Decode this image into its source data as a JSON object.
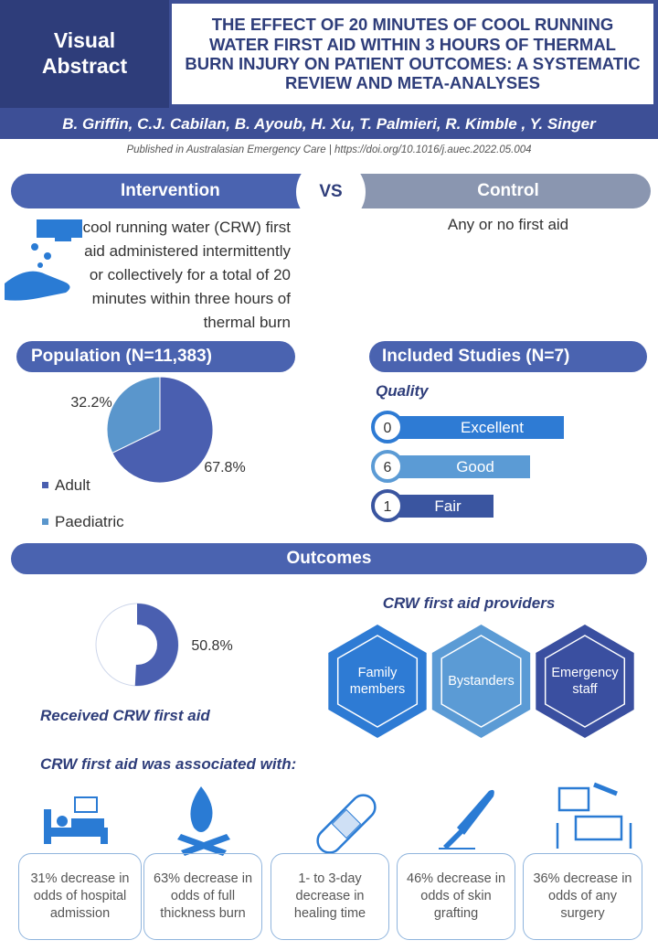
{
  "header": {
    "badge": "Visual Abstract",
    "title": "THE EFFECT OF 20 MINUTES OF COOL RUNNING WATER FIRST AID WITHIN 3 HOURS OF THERMAL BURN INJURY ON PATIENT OUTCOMES: A SYSTEMATIC REVIEW AND META-ANALYSES",
    "authors": "B. Griffin, C.J. Cabilan, B. Ayoub, H. Xu, T. Palmieri, R. Kimble , Y. Singer",
    "published": "Published in Australasian Emergency Care | https://doi.org/10.1016/j.auec.2022.05.004"
  },
  "comparison": {
    "intervention": {
      "label": "Intervention",
      "text": "cool running water (CRW) first aid administered intermittently or collectively for a total of 20 minutes within three hours of thermal burn"
    },
    "vs": "VS",
    "control": {
      "label": "Control",
      "text": "Any or no first aid"
    }
  },
  "population": {
    "title": "Population (N=11,383)",
    "type": "pie",
    "categories": [
      "Adult",
      "Paediatric"
    ],
    "values": [
      67.8,
      32.2
    ],
    "value_labels": [
      "67.8%",
      "32.2%"
    ],
    "colors": [
      "#4a5fb0",
      "#5a96cc"
    ]
  },
  "studies": {
    "title": "Included Studies (N=7)",
    "subtitle": "Quality",
    "categories": [
      "Excellent",
      "Good",
      "Fair"
    ],
    "values": [
      0,
      6,
      1
    ],
    "colors": [
      "#2e7bd4",
      "#5b9bd5",
      "#3a55a0"
    ]
  },
  "outcomes": {
    "title": "Outcomes",
    "received": {
      "type": "donut",
      "values": [
        50.8
      ],
      "value_labels": [
        "50.8%"
      ],
      "label": "Received CRW first aid",
      "color": "#4a5fb0"
    },
    "providers": {
      "title": "CRW first aid providers",
      "items": [
        "Family members",
        "Bystanders",
        "Emergency staff"
      ],
      "colors": [
        "#2e7bd4",
        "#5b9bd5",
        "#3a4fa0"
      ]
    },
    "associated": {
      "title": "CRW first aid was associated with:",
      "items": [
        "31% decrease in odds of hospital admission",
        "63% decrease in odds of full thickness burn",
        "1- to 3-day decrease in healing time",
        "46% decrease in odds of skin grafting",
        "36% decrease in odds of any surgery"
      ]
    }
  }
}
